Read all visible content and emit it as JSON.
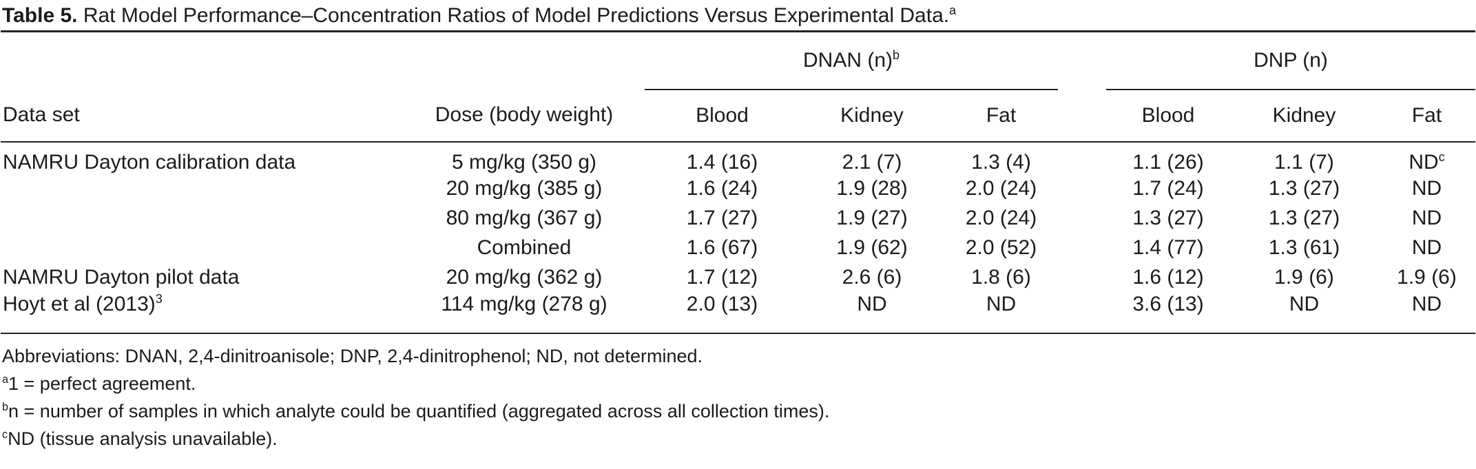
{
  "table": {
    "title": {
      "label": "Table 5.",
      "text": " Rat Model Performance–Concentration Ratios of Model Predictions Versus Experimental Data.",
      "superscript": "a"
    },
    "group_headers": [
      {
        "label": "DNAN (n)",
        "sup": "b"
      },
      {
        "label": "DNP (n)",
        "sup": ""
      }
    ],
    "column_headers": [
      "Data set",
      "Dose (body weight)",
      "Blood",
      "Kidney",
      "Fat",
      "Blood",
      "Kidney",
      "Fat"
    ],
    "rows": [
      {
        "dataset": "NAMRU Dayton calibration data",
        "dataset_sup": "",
        "dose": "5 mg/kg (350 g)",
        "values": [
          "1.4 (16)",
          "2.1 (7)",
          "1.3 (4)",
          "1.1 (26)",
          "1.1 (7)",
          "ND"
        ],
        "value_sups": [
          "",
          "",
          "",
          "",
          "",
          "c"
        ]
      },
      {
        "dataset": "",
        "dataset_sup": "",
        "dose": "20 mg/kg (385 g)",
        "values": [
          "1.6 (24)",
          "1.9 (28)",
          "2.0 (24)",
          "1.7 (24)",
          "1.3 (27)",
          "ND"
        ],
        "value_sups": [
          "",
          "",
          "",
          "",
          "",
          ""
        ]
      },
      {
        "dataset": "",
        "dataset_sup": "",
        "dose": "80 mg/kg (367 g)",
        "values": [
          "1.7 (27)",
          "1.9 (27)",
          "2.0 (24)",
          "1.3 (27)",
          "1.3 (27)",
          "ND"
        ],
        "value_sups": [
          "",
          "",
          "",
          "",
          "",
          ""
        ]
      },
      {
        "dataset": "",
        "dataset_sup": "",
        "dose": "Combined",
        "values": [
          "1.6 (67)",
          "1.9 (62)",
          "2.0 (52)",
          "1.4 (77)",
          "1.3 (61)",
          "ND"
        ],
        "value_sups": [
          "",
          "",
          "",
          "",
          "",
          ""
        ]
      },
      {
        "dataset": "NAMRU Dayton pilot data",
        "dataset_sup": "",
        "dose": "20 mg/kg (362 g)",
        "values": [
          "1.7 (12)",
          "2.6 (6)",
          "1.8 (6)",
          "1.6 (12)",
          "1.9 (6)",
          "1.9 (6)"
        ],
        "value_sups": [
          "",
          "",
          "",
          "",
          "",
          ""
        ]
      },
      {
        "dataset": "Hoyt et al (2013)",
        "dataset_sup": "3",
        "dose": "114 mg/kg (278 g)",
        "values": [
          "2.0 (13)",
          "ND",
          "ND",
          "3.6 (13)",
          "ND",
          "ND"
        ],
        "value_sups": [
          "",
          "",
          "",
          "",
          "",
          ""
        ]
      }
    ],
    "footnotes": [
      {
        "marker": "",
        "text": "Abbreviations: DNAN, 2,4-dinitroanisole; DNP, 2,4-dinitrophenol; ND, not determined."
      },
      {
        "marker": "a",
        "text": "1 = perfect agreement."
      },
      {
        "marker": "b",
        "text": "n = number of samples in which analyte could be quantified (aggregated across all collection times)."
      },
      {
        "marker": "c",
        "text": "ND (tissue analysis unavailable)."
      }
    ]
  }
}
